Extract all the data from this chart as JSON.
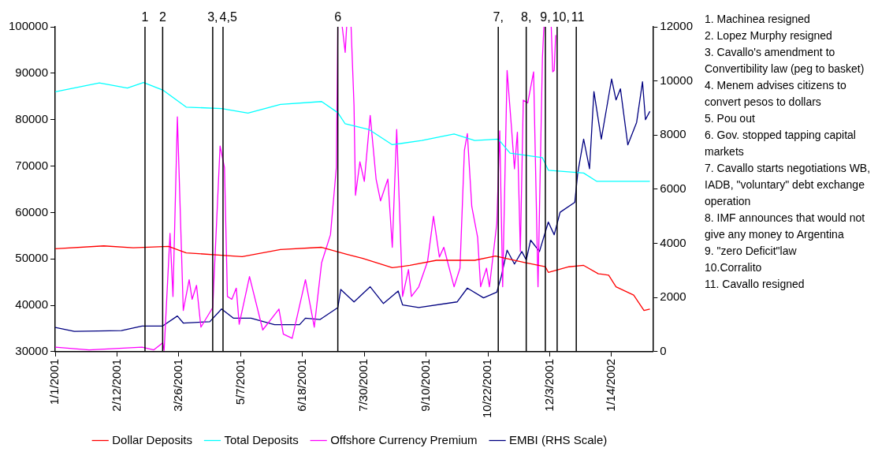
{
  "chart_data": {
    "type": "line",
    "marker": "none",
    "legend": "bottom",
    "xlim": [
      "2001-01-01",
      "2002-02-11"
    ],
    "xticks": [
      {
        "value": "2001-01-01",
        "label": "1/1/2001"
      },
      {
        "value": "2001-02-12",
        "label": "2/12/2001"
      },
      {
        "value": "2001-03-26",
        "label": "3/26/2001"
      },
      {
        "value": "2001-05-07",
        "label": "5/7/2001"
      },
      {
        "value": "2001-06-18",
        "label": "6/18/2001"
      },
      {
        "value": "2001-07-30",
        "label": "7/30/2001"
      },
      {
        "value": "2001-09-10",
        "label": "9/10/2001"
      },
      {
        "value": "2001-10-22",
        "label": "10/22/2001"
      },
      {
        "value": "2001-12-03",
        "label": "12/3/2001"
      },
      {
        "value": "2002-01-14",
        "label": "1/14/2002"
      }
    ],
    "ylim": [
      30000,
      100000
    ],
    "yticks": [
      30000,
      40000,
      50000,
      60000,
      70000,
      80000,
      90000,
      100000
    ],
    "y2lim": [
      0,
      12000
    ],
    "y2ticks": [
      0,
      2000,
      4000,
      6000,
      8000,
      10000,
      12000
    ],
    "series": [
      {
        "name": "Dollar Deposits",
        "color": "#ff0000",
        "x": [
          "2001-01-01",
          "2001-02-03",
          "2001-02-23",
          "2001-03-19",
          "2001-03-31",
          "2001-04-24",
          "2001-05-08",
          "2001-06-03",
          "2001-07-01",
          "2001-07-18",
          "2001-07-29",
          "2001-08-18",
          "2001-08-30",
          "2001-09-17",
          "2001-10-13",
          "2001-10-27",
          "2001-11-16",
          "2001-11-30",
          "2001-12-02",
          "2001-12-16",
          "2001-12-26",
          "2002-01-05",
          "2002-01-12",
          "2002-01-17",
          "2002-01-29",
          "2002-02-05",
          "2002-02-09"
        ],
        "values": [
          52200,
          52800,
          52400,
          52700,
          51300,
          50800,
          50500,
          52000,
          52500,
          51000,
          50100,
          48100,
          48600,
          49700,
          49700,
          50600,
          49200,
          48300,
          47100,
          48300,
          48600,
          46800,
          46500,
          44000,
          42200,
          38900,
          39200
        ]
      },
      {
        "name": "Total Deposits",
        "color": "#00ffff",
        "x": [
          "2001-01-01",
          "2001-01-31",
          "2001-02-19",
          "2001-03-02",
          "2001-03-15",
          "2001-03-31",
          "2001-04-24",
          "2001-05-12",
          "2001-06-03",
          "2001-07-01",
          "2001-07-12",
          "2001-07-17",
          "2001-08-02",
          "2001-08-18",
          "2001-09-07",
          "2001-09-29",
          "2001-10-13",
          "2001-10-29",
          "2001-11-06",
          "2001-11-28",
          "2001-12-02",
          "2001-12-26",
          "2002-01-04",
          "2002-02-09"
        ],
        "values": [
          86000,
          87900,
          86800,
          88000,
          86400,
          82700,
          82400,
          81400,
          83300,
          83900,
          81500,
          79100,
          77900,
          74600,
          75500,
          76900,
          75500,
          75800,
          72800,
          71800,
          69100,
          68500,
          66700,
          66700
        ]
      },
      {
        "name": "Offshore Currency Premium",
        "color": "#ff00ff",
        "x": [
          "2001-01-01",
          "2001-01-24",
          "2001-03-01",
          "2001-03-09",
          "2001-03-15",
          "2001-03-16",
          "2001-03-20",
          "2001-03-22",
          "2001-03-25",
          "2001-03-29",
          "2001-04-02",
          "2001-04-04",
          "2001-04-07",
          "2001-04-10",
          "2001-04-18",
          "2001-04-23",
          "2001-04-26",
          "2001-04-28",
          "2001-05-01",
          "2001-05-04",
          "2001-05-06",
          "2001-05-13",
          "2001-05-22",
          "2001-06-02",
          "2001-06-05",
          "2001-06-11",
          "2001-06-20",
          "2001-06-26",
          "2001-07-01",
          "2001-07-07",
          "2001-07-11",
          "2001-07-12",
          "2001-07-13",
          "2001-07-15",
          "2001-07-17",
          "2001-07-18",
          "2001-07-19",
          "2001-07-21",
          "2001-07-23",
          "2001-07-24",
          "2001-07-27",
          "2001-07-30",
          "2001-08-03",
          "2001-08-07",
          "2001-08-10",
          "2001-08-15",
          "2001-08-18",
          "2001-08-21",
          "2001-08-25",
          "2001-08-29",
          "2001-08-31",
          "2001-09-05",
          "2001-09-11",
          "2001-09-15",
          "2001-09-19",
          "2001-09-22",
          "2001-09-29",
          "2001-10-03",
          "2001-10-06",
          "2001-10-08",
          "2001-10-11",
          "2001-10-15",
          "2001-10-17",
          "2001-10-21",
          "2001-10-23",
          "2001-10-28",
          "2001-10-30",
          "2001-11-01",
          "2001-11-04",
          "2001-11-07",
          "2001-11-09",
          "2001-11-11",
          "2001-11-13",
          "2001-11-15",
          "2001-11-18",
          "2001-11-22",
          "2001-11-25",
          "2001-11-28",
          "2001-11-29",
          "2001-12-02",
          "2001-12-04",
          "2001-12-05",
          "2001-12-06",
          "2001-12-07"
        ],
        "values": [
          31000,
          30400,
          31000,
          30400,
          31900,
          30300,
          55500,
          41900,
          80600,
          38900,
          45500,
          41300,
          44300,
          35300,
          39500,
          74300,
          69700,
          41900,
          41300,
          43700,
          35900,
          46200,
          34700,
          39200,
          33800,
          32900,
          45500,
          35300,
          49200,
          55200,
          69700,
          100000,
          null,
          100000,
          94500,
          100000,
          null,
          100000,
          83000,
          63700,
          70900,
          66700,
          80900,
          67200,
          62500,
          67200,
          52500,
          77900,
          41900,
          47700,
          41900,
          44000,
          49500,
          59200,
          50400,
          52500,
          44000,
          48000,
          73400,
          77000,
          61300,
          54600,
          44000,
          48000,
          44000,
          57600,
          77600,
          44000,
          90600,
          78200,
          69400,
          77300,
          51600,
          84200,
          83600,
          90300,
          44000,
          93300,
          100000,
          null,
          100000,
          90300,
          90600,
          98200
        ]
      },
      {
        "name": "EMBI (RHS Scale)",
        "color": "#000080",
        "axis": "y2",
        "x": [
          "2001-01-01",
          "2001-01-14",
          "2001-02-15",
          "2001-03-01",
          "2001-03-15",
          "2001-03-25",
          "2001-03-29",
          "2001-04-16",
          "2001-04-24",
          "2001-05-02",
          "2001-05-14",
          "2001-05-30",
          "2001-06-16",
          "2001-06-20",
          "2001-06-30",
          "2001-07-12",
          "2001-07-14",
          "2001-07-23",
          "2001-08-03",
          "2001-08-12",
          "2001-08-22",
          "2001-08-25",
          "2001-09-05",
          "2001-10-01",
          "2001-10-08",
          "2001-10-19",
          "2001-10-28",
          "2001-10-31",
          "2001-11-04",
          "2001-11-09",
          "2001-11-14",
          "2001-11-17",
          "2001-11-20",
          "2001-11-26",
          "2001-12-02",
          "2001-12-06",
          "2001-12-10",
          "2001-12-20",
          "2001-12-22",
          "2001-12-26",
          "2001-12-30",
          "2002-01-02",
          "2002-01-07",
          "2002-01-14",
          "2002-01-17",
          "2002-01-20",
          "2002-01-25",
          "2002-01-31",
          "2002-02-04",
          "2002-02-06",
          "2002-02-09"
        ],
        "values": [
          900,
          750,
          780,
          950,
          950,
          1320,
          1060,
          1110,
          1580,
          1240,
          1240,
          1000,
          1000,
          1240,
          1190,
          1630,
          2300,
          1840,
          2400,
          1780,
          2240,
          1730,
          1630,
          1840,
          2350,
          1990,
          2200,
          2770,
          3750,
          3240,
          3700,
          3390,
          4120,
          3700,
          4790,
          4320,
          5150,
          5520,
          6600,
          7850,
          6760,
          9610,
          7850,
          10070,
          9300,
          9710,
          7640,
          8470,
          9970,
          8570,
          8880
        ]
      }
    ],
    "ref_lines": [
      {
        "axis": "x",
        "value": "2001-03-03",
        "label": "1",
        "color": "#000000"
      },
      {
        "axis": "x",
        "value": "2001-03-15",
        "label": "2",
        "color": "#000000"
      },
      {
        "axis": "x",
        "value": "2001-04-18",
        "label": "3,",
        "color": "#000000"
      },
      {
        "axis": "x",
        "value": "2001-04-25",
        "label": "4,5",
        "color": "#000000"
      },
      {
        "axis": "x",
        "value": "2001-07-12",
        "label": "6",
        "color": "#000000"
      },
      {
        "axis": "x",
        "value": "2001-10-29",
        "label": "7,",
        "color": "#000000"
      },
      {
        "axis": "x",
        "value": "2001-11-17",
        "label": "8,",
        "color": "#000000"
      },
      {
        "axis": "x",
        "value": "2001-11-30",
        "label": "9,",
        "color": "#000000"
      },
      {
        "axis": "x",
        "value": "2001-12-08",
        "label": "10,",
        "color": "#000000"
      },
      {
        "axis": "x",
        "value": "2001-12-21",
        "label": "11",
        "color": "#000000"
      }
    ],
    "annotations": [
      "1. Machinea resigned",
      "2. Lopez Murphy resigned",
      "3. Cavallo's amendment to Convertibility law (peg to basket)",
      "4. Menem advises citizens to convert pesos to dollars",
      "5. Pou out",
      "6. Gov. stopped tapping capital markets",
      "7. Cavallo starts negotiations WB, IADB, \"voluntary\" debt exchange operation",
      "8. IMF announces that would not give any money to Argentina",
      "9. \"zero Deficit\"law",
      "10.Corralito",
      "11. Cavallo resigned"
    ]
  }
}
